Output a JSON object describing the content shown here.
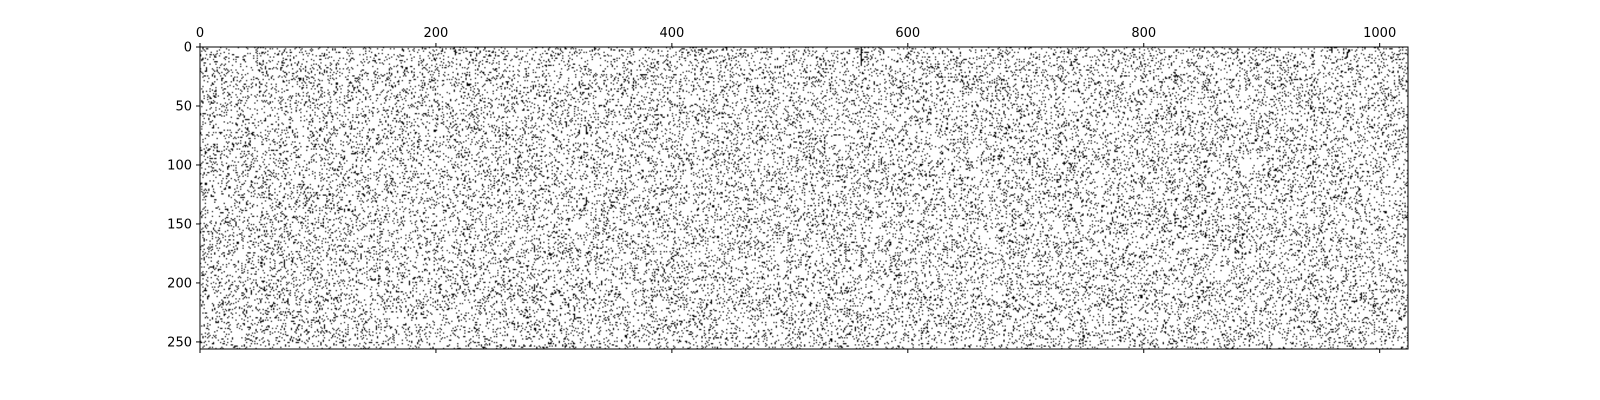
{
  "chart_data": {
    "type": "heatmap",
    "title": "",
    "xlabel": "",
    "ylabel": "",
    "xlim": [
      0,
      1024
    ],
    "ylim": [
      256,
      0
    ],
    "x_axis_position": "top",
    "y_axis_inverted": true,
    "x_ticks": [
      0,
      200,
      400,
      600,
      800,
      1000
    ],
    "y_ticks": [
      0,
      50,
      100,
      150,
      200,
      250
    ],
    "x_tick_labels": [
      "0",
      "200",
      "400",
      "600",
      "800",
      "1000"
    ],
    "y_tick_labels": [
      "0",
      "50",
      "100",
      "150",
      "200",
      "250"
    ],
    "matrix_rows": 256,
    "matrix_cols": 1024,
    "cell_colors": {
      "zero": "#ffffff",
      "nonzero": "#000000"
    },
    "nonzero_density": 0.12,
    "grid": false,
    "legend": "none",
    "frame_color": "#000000",
    "background_color": "#ffffff"
  }
}
